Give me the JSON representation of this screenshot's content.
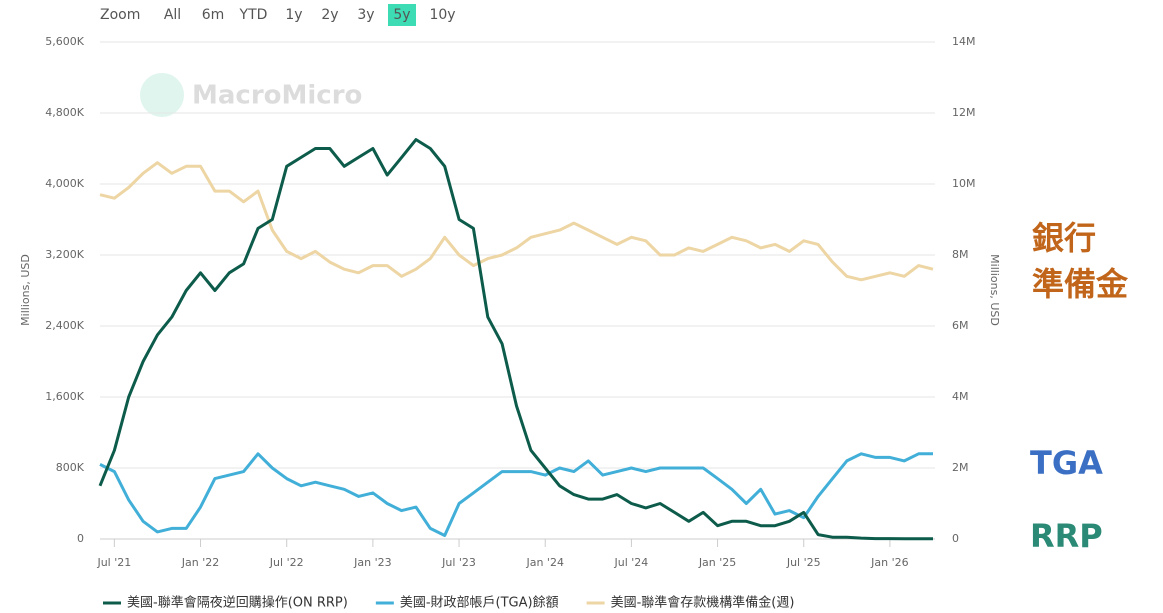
{
  "chart_data": {
    "type": "line",
    "range_selector": {
      "label": "Zoom",
      "options": [
        "All",
        "6m",
        "YTD",
        "1y",
        "2y",
        "3y",
        "5y",
        "10y"
      ],
      "selected_index": 6,
      "selected_color": "#3ddcb4"
    },
    "watermark": "MacroMicro",
    "y_label": "Millions, USD",
    "y2_label": "Millions, USD",
    "x": [
      "2021-06",
      "2021-07",
      "2021-08",
      "2021-09",
      "2021-10",
      "2021-11",
      "2021-12",
      "2022-01",
      "2022-02",
      "2022-03",
      "2022-04",
      "2022-05",
      "2022-06",
      "2022-07",
      "2022-08",
      "2022-09",
      "2022-10",
      "2022-11",
      "2022-12",
      "2023-01",
      "2023-02",
      "2023-03",
      "2023-04",
      "2023-05",
      "2023-06",
      "2023-07",
      "2023-08",
      "2023-09",
      "2023-10",
      "2023-11",
      "2023-12",
      "2024-01",
      "2024-02",
      "2024-03",
      "2024-04",
      "2024-05",
      "2024-06",
      "2024-07",
      "2024-08",
      "2024-09",
      "2024-10",
      "2024-11",
      "2024-12",
      "2025-01",
      "2025-02",
      "2025-03",
      "2025-04",
      "2025-05",
      "2025-06",
      "2025-07",
      "2025-08",
      "2025-09",
      "2025-10",
      "2025-11",
      "2025-12",
      "2026-01",
      "2026-02",
      "2026-03",
      "2026-04"
    ],
    "xlim": [
      "2021-06",
      "2026-04"
    ],
    "xticks": [
      {
        "value": "2021-07",
        "label": "Jul '21"
      },
      {
        "value": "2022-01",
        "label": "Jan '22"
      },
      {
        "value": "2022-07",
        "label": "Jul '22"
      },
      {
        "value": "2023-01",
        "label": "Jan '23"
      },
      {
        "value": "2023-07",
        "label": "Jul '23"
      },
      {
        "value": "2024-01",
        "label": "Jan '24"
      },
      {
        "value": "2024-07",
        "label": "Jul '24"
      },
      {
        "value": "2025-01",
        "label": "Jan '25"
      },
      {
        "value": "2025-07",
        "label": "Jul '25"
      },
      {
        "value": "2026-01",
        "label": "Jan '26"
      }
    ],
    "ylim": [
      0,
      5600000
    ],
    "yticks": [
      0,
      {
        "value": 800000,
        "label": "800K"
      },
      {
        "value": 1600000,
        "label": "1,600K"
      },
      {
        "value": 2400000,
        "label": "2,400K"
      },
      {
        "value": 3200000,
        "label": "3,200K"
      },
      {
        "value": 4000000,
        "label": "4,000K"
      },
      {
        "value": 4800000,
        "label": "4,800K"
      },
      {
        "value": 5600000,
        "label": "5,600K"
      }
    ],
    "y2lim": [
      0,
      14000000
    ],
    "y2ticks": [
      0,
      {
        "value": 2000000,
        "label": "2M"
      },
      {
        "value": 4000000,
        "label": "4M"
      },
      {
        "value": 6000000,
        "label": "6M"
      },
      {
        "value": 8000000,
        "label": "8M"
      },
      {
        "value": 10000000,
        "label": "10M"
      },
      {
        "value": 12000000,
        "label": "12M"
      },
      {
        "value": 14000000,
        "label": "14M"
      }
    ],
    "grid": true,
    "series": [
      {
        "name": "美國-聯準會隔夜逆回購操作(ON RRP)",
        "color": "#0d5c4b",
        "axis": "y",
        "values": [
          600000,
          1000000,
          1600000,
          2000000,
          2300000,
          2500000,
          2800000,
          3000000,
          2800000,
          3000000,
          3100000,
          3500000,
          3600000,
          4200000,
          4300000,
          4400000,
          4400000,
          4200000,
          4300000,
          4400000,
          4100000,
          4300000,
          4500000,
          4400000,
          4200000,
          3600000,
          3500000,
          2500000,
          2200000,
          1500000,
          1000000,
          800000,
          600000,
          500000,
          450000,
          450000,
          500000,
          400000,
          350000,
          400000,
          300000,
          200000,
          300000,
          150000,
          200000,
          200000,
          150000,
          150000,
          200000,
          300000,
          50000,
          20000,
          20000,
          10000,
          5000,
          5000,
          3000,
          3000,
          3000
        ]
      },
      {
        "name": "美國-財政部帳戶(TGA)餘額",
        "color": "#41afd8",
        "axis": "y2",
        "values": [
          2100000,
          1900000,
          1100000,
          500000,
          200000,
          300000,
          300000,
          900000,
          1700000,
          1800000,
          1900000,
          2400000,
          2000000,
          1700000,
          1500000,
          1600000,
          1500000,
          1400000,
          1200000,
          1300000,
          1000000,
          800000,
          900000,
          300000,
          100000,
          1000000,
          1300000,
          1600000,
          1900000,
          1900000,
          1900000,
          1800000,
          2000000,
          1900000,
          2200000,
          1800000,
          1900000,
          2000000,
          1900000,
          2000000,
          2000000,
          2000000,
          2000000,
          1700000,
          1400000,
          1000000,
          1400000,
          700000,
          800000,
          600000,
          1200000,
          1700000,
          2200000,
          2400000,
          2300000,
          2300000,
          2200000,
          2400000,
          2400000
        ]
      },
      {
        "name": "美國-聯準會存款機構準備金(週)",
        "color": "#edd5a4",
        "axis": "y2",
        "values": [
          9700000,
          9600000,
          9900000,
          10300000,
          10600000,
          10300000,
          10500000,
          10500000,
          9800000,
          9800000,
          9500000,
          9800000,
          8700000,
          8100000,
          7900000,
          8100000,
          7800000,
          7600000,
          7500000,
          7700000,
          7700000,
          7400000,
          7600000,
          7900000,
          8500000,
          8000000,
          7700000,
          7900000,
          8000000,
          8200000,
          8500000,
          8600000,
          8700000,
          8900000,
          8700000,
          8500000,
          8300000,
          8500000,
          8400000,
          8000000,
          8000000,
          8200000,
          8100000,
          8300000,
          8500000,
          8400000,
          8200000,
          8300000,
          8100000,
          8400000,
          8300000,
          7800000,
          7400000,
          7300000,
          7400000,
          7500000,
          7400000,
          7700000,
          7600000
        ]
      }
    ],
    "annotations": [
      {
        "lines": [
          "銀行",
          "準備金"
        ],
        "color": "#c0651a"
      },
      {
        "lines": [
          "TGA"
        ],
        "color": "#3b6fc4"
      },
      {
        "lines": [
          "RRP"
        ],
        "color": "#2a8a76"
      }
    ]
  }
}
